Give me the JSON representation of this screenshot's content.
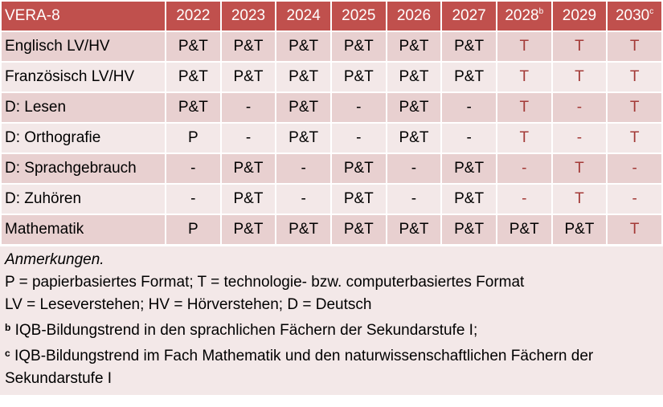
{
  "table": {
    "title": "VERA-8",
    "columns": [
      {
        "year": "2022",
        "sup": ""
      },
      {
        "year": "2023",
        "sup": ""
      },
      {
        "year": "2024",
        "sup": ""
      },
      {
        "year": "2025",
        "sup": ""
      },
      {
        "year": "2026",
        "sup": ""
      },
      {
        "year": "2027",
        "sup": ""
      },
      {
        "year": "2028",
        "sup": "b"
      },
      {
        "year": "2029",
        "sup": ""
      },
      {
        "year": "2030",
        "sup": "c"
      }
    ],
    "highlight_from_column": "2028",
    "colors": {
      "header": "#c0504d",
      "row_dark": "#e8d0d0",
      "row_light": "#f3e8e8",
      "technology_future": "#a33a37"
    },
    "rows": [
      {
        "label": "Englisch LV/HV",
        "values": [
          "P&T",
          "P&T",
          "P&T",
          "P&T",
          "P&T",
          "P&T",
          "T",
          "T",
          "T"
        ]
      },
      {
        "label": "Französisch LV/HV",
        "values": [
          "P&T",
          "P&T",
          "P&T",
          "P&T",
          "P&T",
          "P&T",
          "T",
          "T",
          "T"
        ]
      },
      {
        "label": "D: Lesen",
        "values": [
          "P&T",
          "-",
          "P&T",
          "-",
          "P&T",
          "-",
          "T",
          "-",
          "T"
        ]
      },
      {
        "label": "D: Orthografie",
        "values": [
          "P",
          "-",
          "P&T",
          "-",
          "P&T",
          "-",
          "T",
          "-",
          "T"
        ]
      },
      {
        "label": "D: Sprachgebrauch",
        "values": [
          "-",
          "P&T",
          "-",
          "P&T",
          "-",
          "P&T",
          "-",
          "T",
          "-"
        ]
      },
      {
        "label": "D: Zuhören",
        "values": [
          "-",
          "P&T",
          "-",
          "P&T",
          "-",
          "P&T",
          "-",
          "T",
          "-"
        ]
      },
      {
        "label": "Mathematik",
        "values": [
          "P",
          "P&T",
          "P&T",
          "P&T",
          "P&T",
          "P&T",
          "P&T",
          "P&T",
          "T"
        ]
      }
    ]
  },
  "notes": {
    "heading": "Anmerkungen.",
    "line1": "P = papierbasiertes Format; T = technologie- bzw. computerbasiertes Format",
    "line2": "LV = Leseverstehen; HV = Hörverstehen; D = Deutsch",
    "b_marker": "b",
    "b_text": " IQB-Bildungstrend in den sprachlichen Fächern der Sekundarstufe I;",
    "c_marker": "c",
    "c_text": " IQB-Bildungstrend im Fach Mathematik und den naturwissenschaftlichen Fächern der Sekundarstufe I"
  }
}
